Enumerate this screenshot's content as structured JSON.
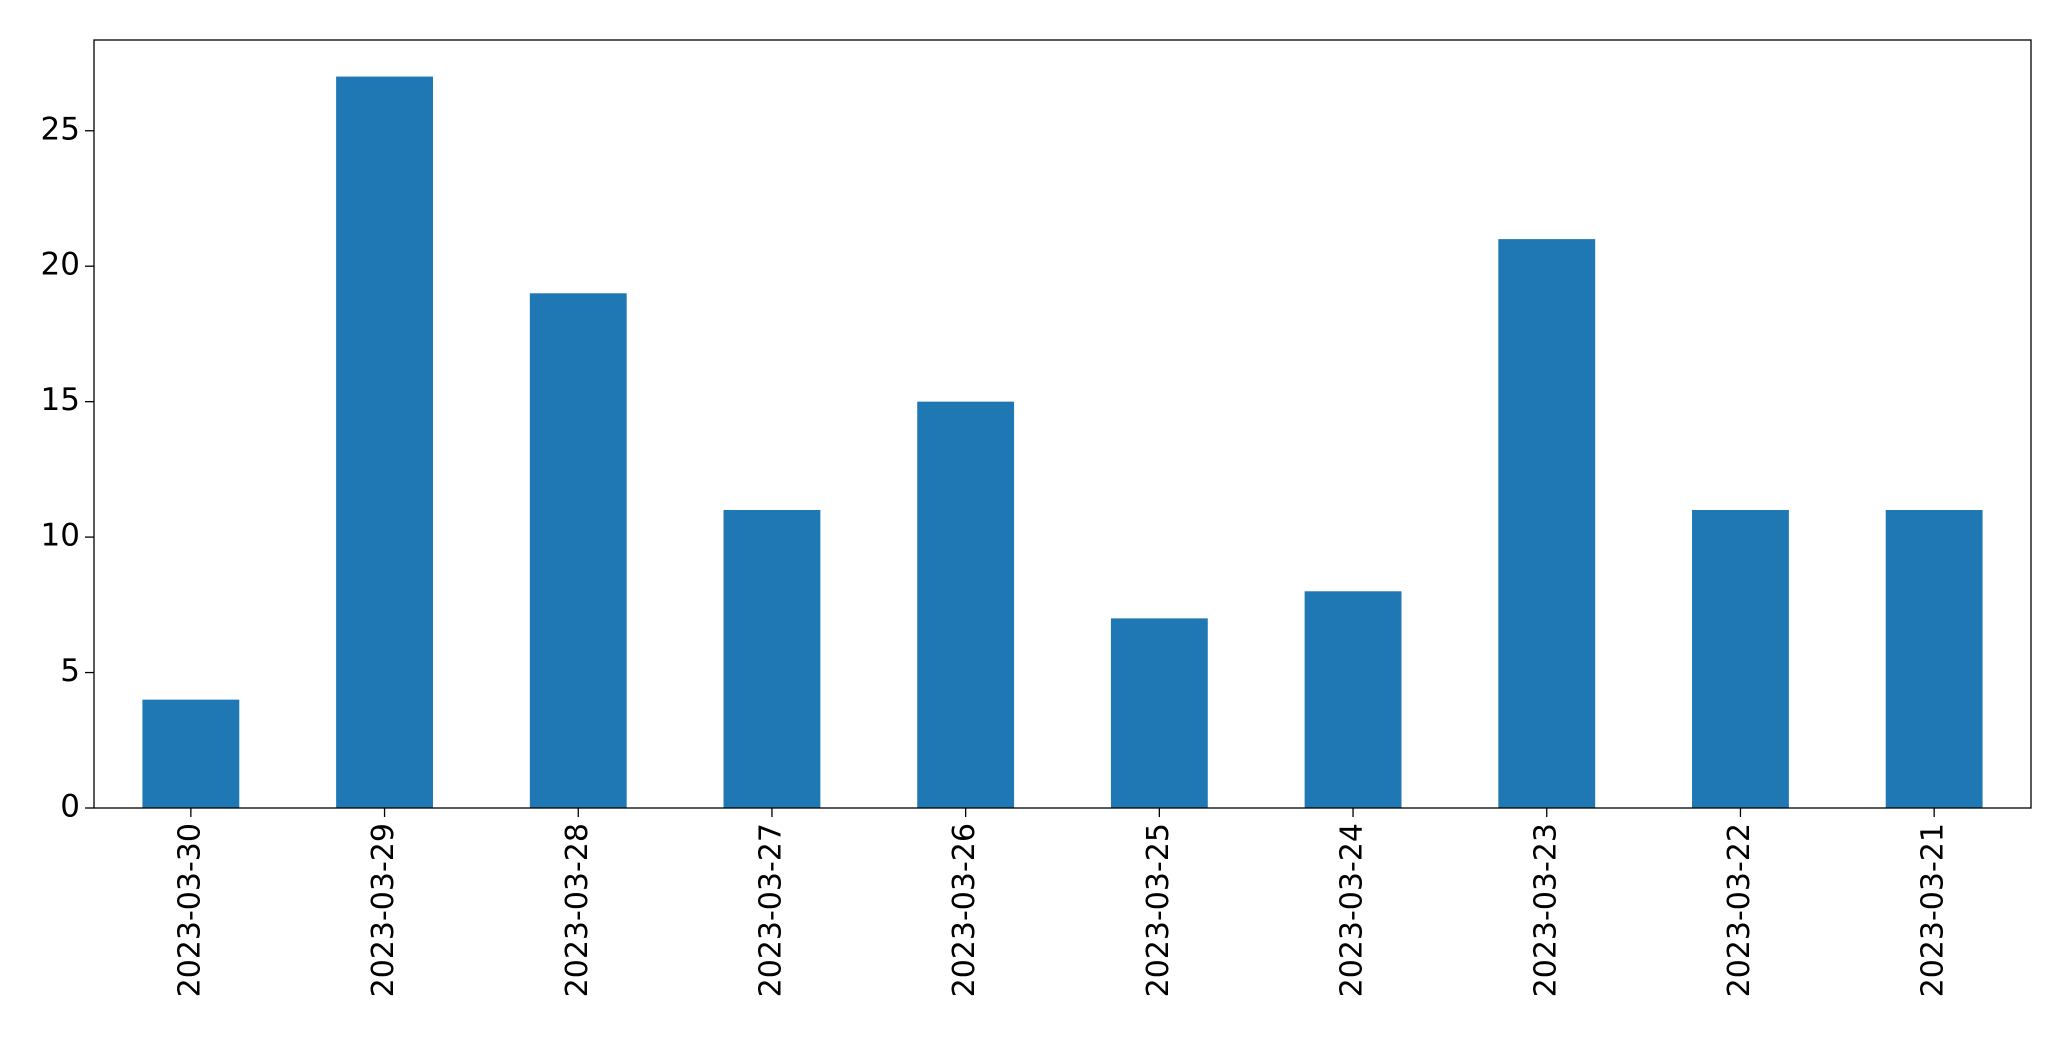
{
  "chart_data": {
    "type": "bar",
    "categories": [
      "2023-03-30",
      "2023-03-29",
      "2023-03-28",
      "2023-03-27",
      "2023-03-26",
      "2023-03-25",
      "2023-03-24",
      "2023-03-23",
      "2023-03-22",
      "2023-03-21"
    ],
    "values": [
      4,
      27,
      19,
      11,
      15,
      7,
      8,
      21,
      11,
      11
    ],
    "color": "#1f77b4",
    "ylim": [
      0,
      28.35
    ],
    "yticks": [
      0,
      5,
      10,
      15,
      20,
      25
    ],
    "grid": false
  }
}
